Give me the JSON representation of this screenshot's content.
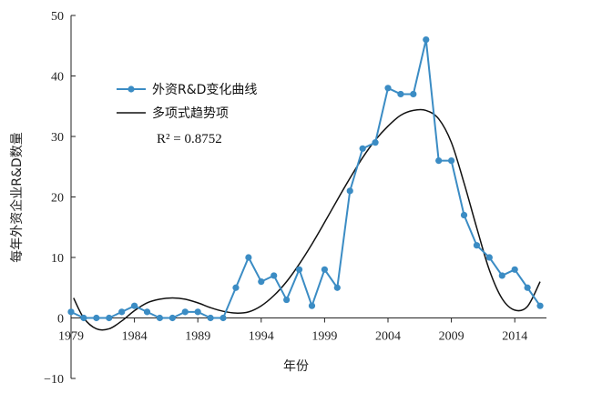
{
  "chart_data": {
    "type": "line",
    "xlabel": "年份",
    "ylabel": "每年外资企业R&D数量",
    "xlim": [
      1979,
      2016.5
    ],
    "ylim": [
      -10,
      50
    ],
    "x_ticks": [
      1979,
      1984,
      1989,
      1994,
      1999,
      2004,
      2009,
      2014
    ],
    "y_ticks": [
      -10,
      0,
      10,
      20,
      30,
      40,
      50
    ],
    "x_tick_labels": [
      "1979",
      "1984",
      "1989",
      "1994",
      "1999",
      "2004",
      "2009",
      "2014"
    ],
    "y_tick_labels": [
      "−10",
      "0",
      "10",
      "20",
      "30",
      "40",
      "50"
    ],
    "legend_position": "upper-left",
    "series": [
      {
        "name": "外资R&D变化曲线",
        "kind": "line-marker",
        "color": "#3b8cc4",
        "x": [
          1979,
          1980,
          1981,
          1982,
          1983,
          1984,
          1985,
          1986,
          1987,
          1988,
          1989,
          1990,
          1991,
          1992,
          1993,
          1994,
          1995,
          1996,
          1997,
          1998,
          1999,
          2000,
          2001,
          2002,
          2003,
          2004,
          2005,
          2006,
          2007,
          2008,
          2009,
          2010,
          2011,
          2012,
          2013,
          2014,
          2015,
          2016
        ],
        "values": [
          1,
          0,
          0,
          0,
          1,
          2,
          1,
          0,
          0,
          1,
          1,
          0,
          0,
          5,
          10,
          6,
          7,
          3,
          8,
          2,
          8,
          5,
          21,
          28,
          29,
          38,
          37,
          37,
          46,
          26,
          26,
          17,
          12,
          10,
          7,
          8,
          5,
          2
        ]
      },
      {
        "name": "多项式趋势项",
        "kind": "trend",
        "color": "#111111",
        "x": [
          1979.2,
          1980,
          1981,
          1982,
          1983,
          1984,
          1985,
          1986,
          1987,
          1988,
          1989,
          1990,
          1991,
          1992,
          1993,
          1994,
          1995,
          1996,
          1997,
          1998,
          1999,
          2000,
          2001,
          2002,
          2003,
          2004,
          2005,
          2006,
          2007,
          2008,
          2009,
          2010,
          2011,
          2012,
          2013,
          2014,
          2015,
          2016
        ],
        "values": [
          3.3,
          0,
          -1.8,
          -1.8,
          -0.5,
          1.2,
          2.5,
          3.1,
          3.3,
          3.1,
          2.5,
          1.7,
          1.1,
          0.8,
          1.0,
          2.0,
          3.7,
          6.0,
          8.9,
          12.2,
          15.8,
          19.5,
          23.1,
          26.5,
          29.4,
          31.7,
          33.5,
          34.3,
          34.3,
          32.9,
          29.0,
          22.3,
          14.9,
          7.9,
          3.2,
          1.3,
          1.9,
          6.0
        ]
      }
    ],
    "annotation": "R² = 0.8752"
  },
  "legend": {
    "series1_label": "外资R&D变化曲线",
    "series2_label": "多项式趋势项",
    "r_squared": "R² = 0.8752"
  }
}
